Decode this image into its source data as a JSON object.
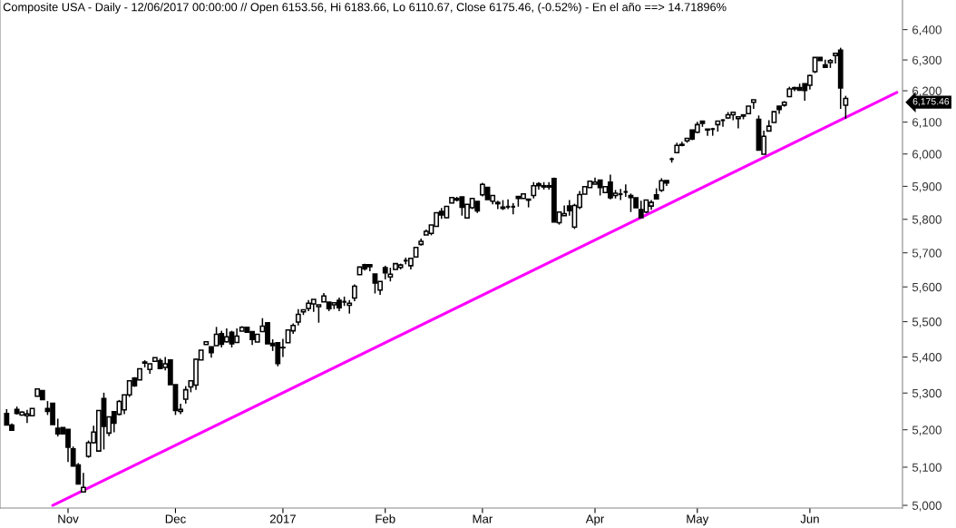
{
  "chart_data": {
    "type": "candlestick",
    "title": "Composite USA - Daily - 12/06/2017 00:00:00 // Open 6153.56, Hi 6183.66, Lo 6110.67, Close 6175.46, (-0.52%) - En el año ==> 14.71896%",
    "log": "y",
    "color": "#000000",
    "ylim": [
      4993,
      6499
    ],
    "yticks": [
      {
        "value": 5000,
        "label": "5,000"
      },
      {
        "value": 5100,
        "label": "5,100"
      },
      {
        "value": 5200,
        "label": "5,200"
      },
      {
        "value": 5300,
        "label": "5,300"
      },
      {
        "value": 5400,
        "label": "5,400"
      },
      {
        "value": 5500,
        "label": "5,500"
      },
      {
        "value": 5600,
        "label": "5,600"
      },
      {
        "value": 5700,
        "label": "5,700"
      },
      {
        "value": 5800,
        "label": "5,800"
      },
      {
        "value": 5900,
        "label": "5,900"
      },
      {
        "value": 6000,
        "label": "6,000"
      },
      {
        "value": 6100,
        "label": "6,100"
      },
      {
        "value": 6200,
        "label": "6,200"
      },
      {
        "value": 6300,
        "label": "6,300"
      },
      {
        "value": 6400,
        "label": "6,400"
      }
    ],
    "categories": [
      null,
      null,
      null,
      null,
      null,
      null,
      null,
      null,
      null,
      null,
      null,
      null,
      "Nov",
      null,
      null,
      null,
      null,
      null,
      null,
      null,
      null,
      null,
      null,
      null,
      null,
      null,
      null,
      null,
      null,
      null,
      null,
      null,
      null,
      "Dec",
      null,
      null,
      null,
      null,
      null,
      null,
      null,
      null,
      null,
      null,
      null,
      null,
      null,
      null,
      null,
      null,
      null,
      null,
      null,
      null,
      "2017",
      null,
      null,
      null,
      null,
      null,
      null,
      null,
      null,
      null,
      null,
      null,
      null,
      null,
      null,
      null,
      null,
      null,
      null,
      null,
      "Feb",
      null,
      null,
      null,
      null,
      null,
      null,
      null,
      null,
      null,
      null,
      null,
      null,
      null,
      null,
      null,
      null,
      null,
      null,
      "Mar",
      null,
      null,
      null,
      null,
      null,
      null,
      null,
      null,
      null,
      null,
      null,
      null,
      null,
      null,
      null,
      null,
      null,
      null,
      null,
      null,
      null,
      "Apr",
      null,
      null,
      null,
      null,
      null,
      null,
      null,
      null,
      null,
      null,
      null,
      null,
      null,
      null,
      null,
      null,
      null,
      null,
      null,
      "May",
      null,
      null,
      null,
      null,
      null,
      null,
      null,
      null,
      null,
      null,
      null,
      null,
      null,
      null,
      null,
      null,
      null,
      null,
      null,
      null,
      null,
      "Jun",
      null,
      null,
      null,
      null,
      null,
      null,
      null,
      null,
      null,
      null,
      null,
      null,
      null,
      null,
      null,
      null,
      null,
      null
    ],
    "ohlc": [
      [
        5244,
        5256,
        5213,
        5213
      ],
      [
        5213,
        5217,
        5199,
        5199
      ],
      [
        5255,
        5263,
        5241,
        5244
      ],
      [
        5240,
        5250,
        5238,
        5248
      ],
      [
        5238,
        5254,
        5218,
        5243
      ],
      [
        5238,
        5258,
        5238,
        5258
      ],
      [
        5291,
        5311,
        5291,
        5311
      ],
      [
        5307,
        5307,
        5282,
        5282
      ],
      [
        5258,
        5278,
        5240,
        5250
      ],
      [
        5272,
        5272,
        5214,
        5214
      ],
      [
        5204,
        5230,
        5182,
        5189
      ],
      [
        5206,
        5206,
        5189,
        5189
      ],
      [
        5201,
        5201,
        5114,
        5153
      ],
      [
        5149,
        5155,
        5102,
        5103
      ],
      [
        5106,
        5111,
        5055,
        5056
      ],
      [
        5035,
        5085,
        5035,
        5047
      ],
      [
        5129,
        5171,
        5125,
        5165
      ],
      [
        5165,
        5211,
        5163,
        5194
      ],
      [
        5143,
        5252,
        5143,
        5252
      ],
      [
        5285,
        5301,
        5147,
        5209
      ],
      [
        5191,
        5235,
        5183,
        5235
      ],
      [
        5249,
        5249,
        5193,
        5218
      ],
      [
        5242,
        5281,
        5239,
        5277
      ],
      [
        5254,
        5295,
        5242,
        5295
      ],
      [
        5295,
        5334,
        5289,
        5334
      ],
      [
        5341,
        5344,
        5317,
        5320
      ],
      [
        5336,
        5367,
        5336,
        5367
      ],
      [
        5383,
        5391,
        5371,
        5386
      ],
      [
        5365,
        5381,
        5353,
        5381
      ],
      [
        5388,
        5398,
        5388,
        5398
      ],
      [
        5390,
        5396,
        5367,
        5368
      ],
      [
        5371,
        5400,
        5363,
        5381
      ],
      [
        5392,
        5392,
        5323,
        5323
      ],
      [
        5323,
        5323,
        5240,
        5252
      ],
      [
        5250,
        5271,
        5242,
        5255
      ],
      [
        5283,
        5319,
        5271,
        5309
      ],
      [
        5317,
        5334,
        5302,
        5334
      ],
      [
        5322,
        5396,
        5309,
        5394
      ],
      [
        5392,
        5419,
        5392,
        5419
      ],
      [
        5435,
        5443,
        5435,
        5443
      ],
      [
        5429,
        5429,
        5398,
        5412
      ],
      [
        5432,
        5485,
        5432,
        5464
      ],
      [
        5466,
        5474,
        5427,
        5436
      ],
      [
        5443,
        5481,
        5441,
        5457
      ],
      [
        5470,
        5474,
        5427,
        5437
      ],
      [
        5441,
        5481,
        5441,
        5459
      ],
      [
        5473,
        5487,
        5473,
        5484
      ],
      [
        5484,
        5484,
        5468,
        5470
      ],
      [
        5472,
        5472,
        5434,
        5449
      ],
      [
        5442,
        5464,
        5442,
        5464
      ],
      [
        5472,
        5510,
        5472,
        5487
      ],
      [
        5497,
        5497,
        5437,
        5437
      ],
      [
        5438,
        5450,
        5417,
        5432
      ],
      [
        5440,
        5440,
        5374,
        5382
      ],
      [
        5426,
        5451,
        5400,
        5427
      ],
      [
        5440,
        5476,
        5440,
        5476
      ],
      [
        5474,
        5495,
        5465,
        5489
      ],
      [
        5499,
        5536,
        5489,
        5521
      ],
      [
        5528,
        5534,
        5519,
        5534
      ],
      [
        5538,
        5562,
        5530,
        5553
      ],
      [
        5551,
        5564,
        5528,
        5564
      ],
      [
        5543,
        5548,
        5497,
        5548
      ],
      [
        5557,
        5582,
        5557,
        5574
      ],
      [
        5556,
        5556,
        5530,
        5537
      ],
      [
        5548,
        5554,
        5536,
        5554
      ],
      [
        5561,
        5569,
        5530,
        5540
      ],
      [
        5557,
        5572,
        5545,
        5557
      ],
      [
        5547,
        5562,
        5523,
        5553
      ],
      [
        5568,
        5607,
        5559,
        5602
      ],
      [
        5636,
        5658,
        5636,
        5658
      ],
      [
        5665,
        5668,
        5648,
        5653
      ],
      [
        5665,
        5665,
        5646,
        5659
      ],
      [
        5638,
        5638,
        5581,
        5611
      ],
      [
        5591,
        5616,
        5577,
        5616
      ],
      [
        5656,
        5662,
        5622,
        5641
      ],
      [
        5629,
        5656,
        5616,
        5637
      ],
      [
        5651,
        5668,
        5651,
        5668
      ],
      [
        5657,
        5668,
        5651,
        5664
      ],
      [
        5677,
        5686,
        5666,
        5677
      ],
      [
        5662,
        5684,
        5651,
        5684
      ],
      [
        5688,
        5716,
        5688,
        5716
      ],
      [
        5725,
        5742,
        5721,
        5734
      ],
      [
        5753,
        5769,
        5753,
        5764
      ],
      [
        5758,
        5783,
        5752,
        5783
      ],
      [
        5779,
        5820,
        5779,
        5820
      ],
      [
        5824,
        5834,
        5801,
        5813
      ],
      [
        5805,
        5839,
        5804,
        5839
      ],
      [
        5849,
        5866,
        5849,
        5866
      ],
      [
        5863,
        5868,
        5854,
        5858
      ],
      [
        5868,
        5868,
        5811,
        5836
      ],
      [
        5804,
        5845,
        5804,
        5845
      ],
      [
        5835,
        5863,
        5831,
        5863
      ],
      [
        5854,
        5854,
        5819,
        5825
      ],
      [
        5874,
        5911,
        5869,
        5906
      ],
      [
        5897,
        5897,
        5860,
        5860
      ],
      [
        5855,
        5872,
        5845,
        5872
      ],
      [
        5851,
        5856,
        5831,
        5847
      ],
      [
        5837,
        5858,
        5828,
        5833
      ],
      [
        5838,
        5860,
        5831,
        5838
      ],
      [
        5838,
        5849,
        5815,
        5838
      ],
      [
        5869,
        5869,
        5838,
        5863
      ],
      [
        5863,
        5877,
        5863,
        5877
      ],
      [
        5861,
        5861,
        5836,
        5858
      ],
      [
        5872,
        5913,
        5863,
        5902
      ],
      [
        5908,
        5913,
        5890,
        5902
      ],
      [
        5902,
        5913,
        5890,
        5898
      ],
      [
        5902,
        5913,
        5890,
        5898
      ],
      [
        5924,
        5927,
        5792,
        5792
      ],
      [
        5790,
        5822,
        5784,
        5822
      ],
      [
        5811,
        5842,
        5811,
        5817
      ],
      [
        5840,
        5858,
        5811,
        5826
      ],
      [
        5777,
        5847,
        5771,
        5842
      ],
      [
        5836,
        5886,
        5831,
        5875
      ],
      [
        5876,
        5899,
        5876,
        5899
      ],
      [
        5896,
        5916,
        5896,
        5916
      ],
      [
        5907,
        5927,
        5907,
        5913
      ],
      [
        5919,
        5919,
        5872,
        5896
      ],
      [
        5881,
        5899,
        5881,
        5899
      ],
      [
        5913,
        5936,
        5860,
        5865
      ],
      [
        5872,
        5889,
        5863,
        5879
      ],
      [
        5876,
        5892,
        5858,
        5876
      ],
      [
        5883,
        5906,
        5868,
        5883
      ],
      [
        5872,
        5878,
        5822,
        5866
      ],
      [
        5865,
        5865,
        5835,
        5835
      ],
      [
        5829,
        5856,
        5805,
        5805
      ],
      [
        5822,
        5858,
        5819,
        5858
      ],
      [
        5840,
        5858,
        5829,
        5851
      ],
      [
        5874,
        5894,
        5860,
        5862
      ],
      [
        5888,
        5925,
        5883,
        5917
      ],
      [
        5918,
        5918,
        5901,
        5910
      ],
      [
        5984,
        5989,
        5973,
        5984
      ],
      [
        6004,
        6035,
        6004,
        6027
      ],
      [
        6030,
        6038,
        6024,
        6027
      ],
      [
        6041,
        6049,
        6035,
        6049
      ],
      [
        6075,
        6075,
        6043,
        6047
      ],
      [
        6068,
        6101,
        6065,
        6092
      ],
      [
        6103,
        6103,
        6085,
        6096
      ],
      [
        6078,
        6078,
        6057,
        6075
      ],
      [
        6078,
        6082,
        6057,
        6078
      ],
      [
        6092,
        6103,
        6070,
        6103
      ],
      [
        6106,
        6109,
        6085,
        6106
      ],
      [
        6113,
        6132,
        6110,
        6123
      ],
      [
        6123,
        6131,
        6106,
        6131
      ],
      [
        6111,
        6117,
        6080,
        6117
      ],
      [
        6123,
        6123,
        6109,
        6119
      ],
      [
        6127,
        6151,
        6127,
        6151
      ],
      [
        6163,
        6171,
        6142,
        6171
      ],
      [
        6109,
        6121,
        6012,
        6012
      ],
      [
        5999,
        6073,
        5999,
        6055
      ],
      [
        6072,
        6106,
        6072,
        6087
      ],
      [
        6099,
        6133,
        6099,
        6133
      ],
      [
        6151,
        6151,
        6126,
        6140
      ],
      [
        6154,
        6167,
        6149,
        6163
      ],
      [
        6181,
        6213,
        6180,
        6206
      ],
      [
        6206,
        6213,
        6199,
        6210
      ],
      [
        6210,
        6223,
        6202,
        6202
      ],
      [
        6223,
        6223,
        6168,
        6201
      ],
      [
        6218,
        6252,
        6204,
        6249
      ],
      [
        6262,
        6308,
        6257,
        6308
      ],
      [
        6308,
        6308,
        6298,
        6298
      ],
      [
        6284,
        6301,
        6276,
        6276
      ],
      [
        6291,
        6303,
        6274,
        6298
      ],
      [
        6314,
        6322,
        6288,
        6322
      ],
      [
        6332,
        6340,
        6142,
        6209
      ],
      [
        6153.56,
        6183.66,
        6110.67,
        6175.46
      ],
      null,
      null,
      null,
      null,
      null,
      null,
      null,
      null,
      null,
      null,
      null
    ],
    "series": [
      {
        "type": "line",
        "color": "#ff00ff",
        "values": [
          null,
          null,
          null,
          null,
          null,
          null,
          null,
          null,
          null,
          5000,
          null,
          null,
          null,
          null,
          null,
          null,
          null,
          null,
          null,
          null,
          null,
          null,
          null,
          null,
          null,
          null,
          null,
          null,
          null,
          null,
          null,
          null,
          null,
          null,
          null,
          null,
          null,
          null,
          null,
          null,
          null,
          null,
          null,
          null,
          null,
          null,
          null,
          null,
          null,
          null,
          null,
          null,
          null,
          null,
          null,
          null,
          null,
          null,
          null,
          null,
          null,
          null,
          null,
          null,
          null,
          null,
          null,
          null,
          null,
          null,
          null,
          null,
          null,
          null,
          null,
          null,
          null,
          null,
          null,
          null,
          null,
          null,
          null,
          null,
          null,
          null,
          null,
          null,
          null,
          null,
          null,
          null,
          null,
          null,
          null,
          null,
          null,
          null,
          null,
          null,
          null,
          null,
          null,
          null,
          null,
          null,
          null,
          null,
          null,
          null,
          null,
          null,
          null,
          null,
          null,
          null,
          null,
          null,
          null,
          null,
          null,
          null,
          null,
          null,
          null,
          null,
          null,
          null,
          null,
          null,
          null,
          null,
          null,
          null,
          null,
          null,
          null,
          null,
          null,
          null,
          null,
          null,
          null,
          null,
          null,
          null,
          null,
          null,
          null,
          null,
          null,
          null,
          null,
          null,
          null,
          null,
          null,
          null,
          null,
          null,
          null,
          null,
          null,
          null,
          null,
          null,
          null,
          null,
          null,
          null,
          null,
          null,
          null,
          null,
          6195,
          null
        ]
      }
    ],
    "annotations": [
      "6,175.46"
    ]
  }
}
